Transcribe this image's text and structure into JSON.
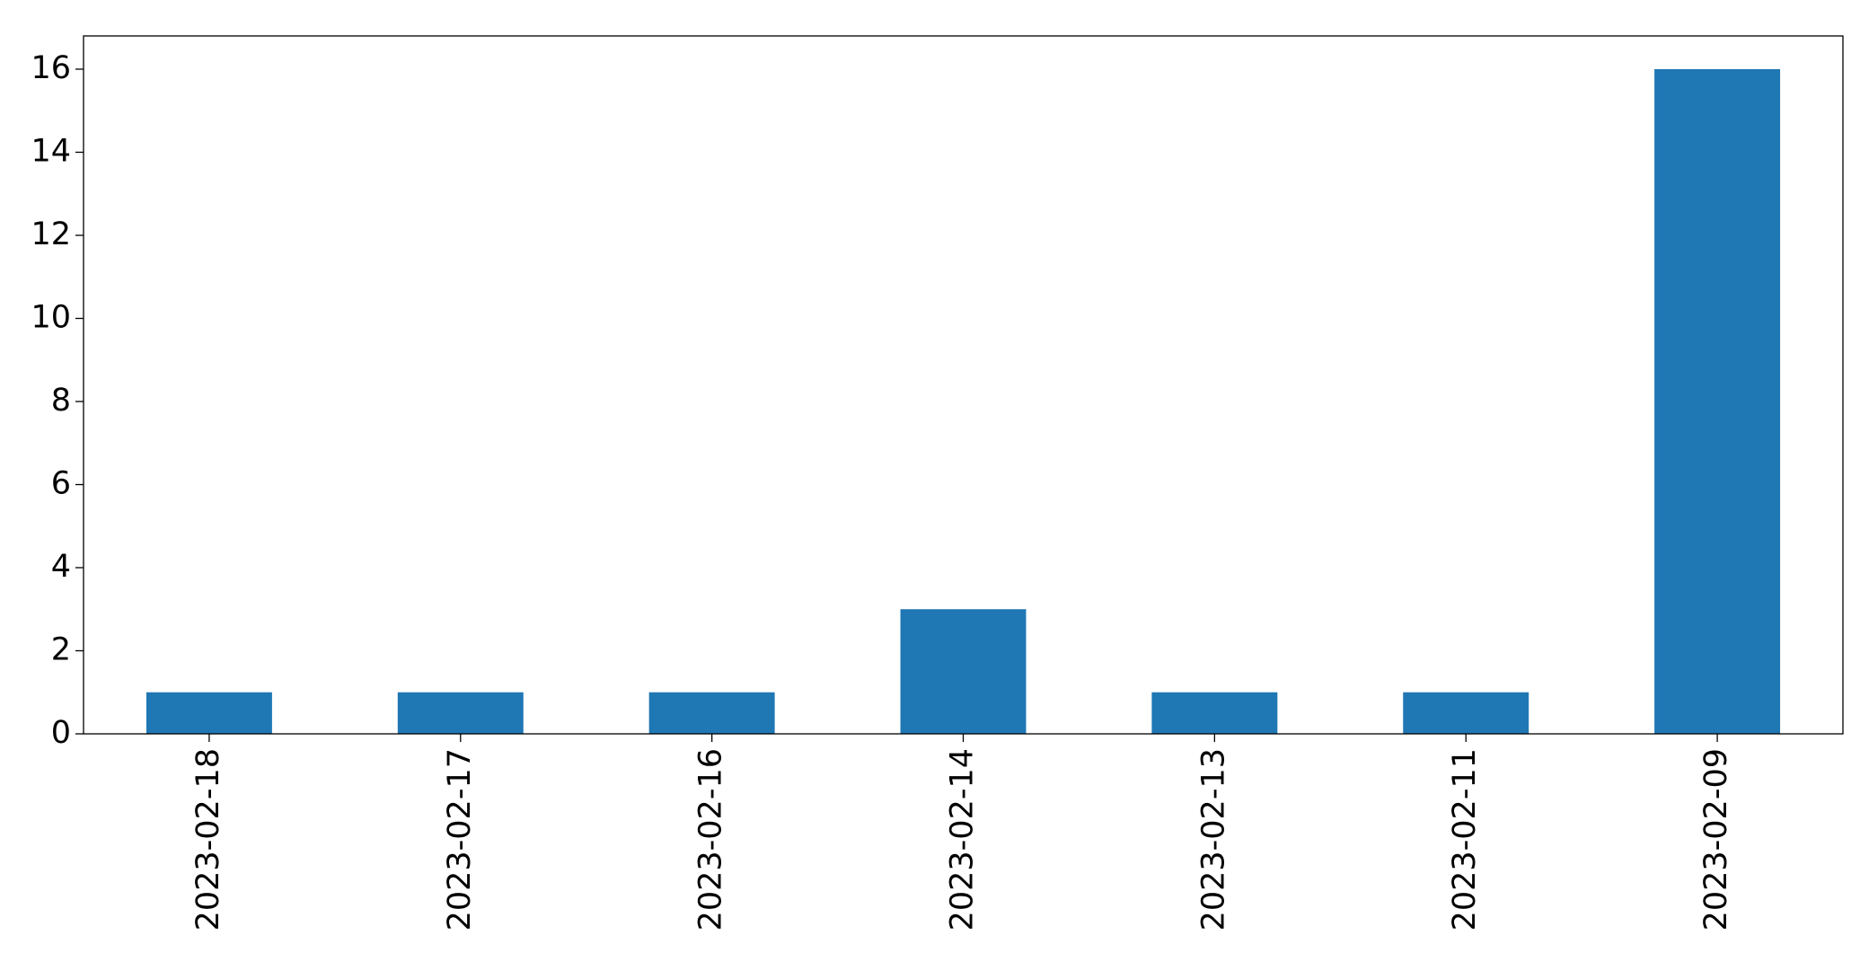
{
  "chart_data": {
    "type": "bar",
    "categories": [
      "2023-02-18",
      "2023-02-17",
      "2023-02-16",
      "2023-02-14",
      "2023-02-13",
      "2023-02-11",
      "2023-02-09"
    ],
    "values": [
      1,
      1,
      1,
      3,
      1,
      1,
      16
    ],
    "color": "#1f77b4",
    "ylim": [
      0,
      16.8
    ],
    "yticks": [
      0,
      2,
      4,
      6,
      8,
      10,
      12,
      14,
      16
    ],
    "grid": false
  }
}
